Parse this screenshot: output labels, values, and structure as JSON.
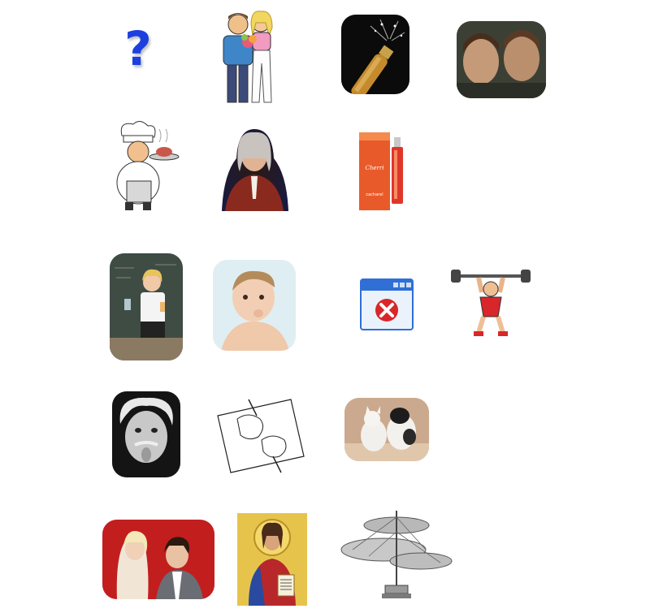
{
  "tiles": [
    {
      "id": "question-mark",
      "glyph": "?",
      "color": "#1c3fe0"
    },
    {
      "id": "couple-cartoon"
    },
    {
      "id": "champagne-bottle"
    },
    {
      "id": "two-faces-photo"
    },
    {
      "id": "chef-cartoon"
    },
    {
      "id": "portrait-painting"
    },
    {
      "id": "perfume-bottle",
      "brand": "Cherri",
      "subtext": "cacharel"
    },
    {
      "id": "teacher-chalkboard"
    },
    {
      "id": "baby-photo"
    },
    {
      "id": "window-error-icon"
    },
    {
      "id": "weightlifter-cartoon"
    },
    {
      "id": "einstein-tongue"
    },
    {
      "id": "drawing-hands-sketch"
    },
    {
      "id": "kitten-puppy-photo"
    },
    {
      "id": "couple-vintage-photo"
    },
    {
      "id": "icon-painting"
    },
    {
      "id": "helicopter-sketch"
    }
  ],
  "colors": {
    "question": "#1c3fe0",
    "error_red": "#d9262a",
    "window_blue": "#2f6fd6"
  }
}
